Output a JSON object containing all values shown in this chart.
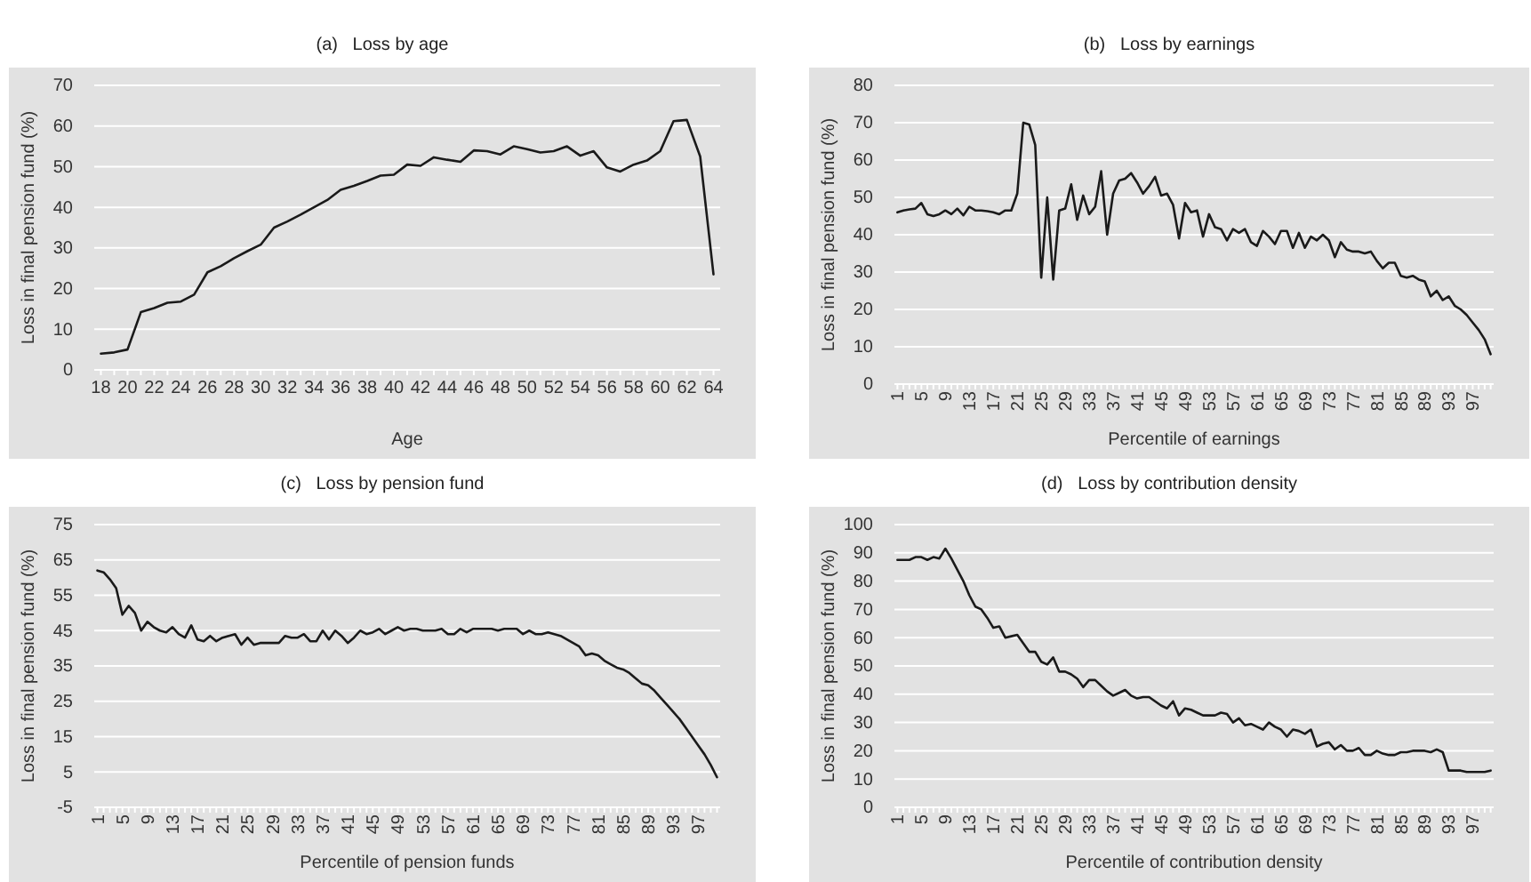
{
  "chart_data": [
    {
      "type": "line",
      "title": "(a)   Loss by age",
      "xlabel": "Age",
      "ylabel": "Loss in final pension fund (%)",
      "grid": "y",
      "ylim": [
        0,
        70
      ],
      "yticks": [
        0,
        10,
        20,
        30,
        40,
        50,
        60,
        70
      ],
      "categories": [
        "18",
        null,
        "20",
        null,
        "22",
        null,
        "24",
        null,
        "26",
        null,
        "28",
        null,
        "30",
        null,
        "32",
        null,
        "34",
        null,
        "36",
        null,
        "38",
        null,
        "40",
        null,
        "42",
        null,
        "44",
        null,
        "46",
        null,
        "48",
        null,
        "50",
        null,
        "52",
        null,
        "54",
        null,
        "56",
        null,
        "58",
        null,
        "60",
        null,
        "62",
        null,
        "64"
      ],
      "series": [
        {
          "color": "#1a1a1a",
          "values": [
            4,
            4.3,
            5,
            14.2,
            15.2,
            16.5,
            16.8,
            18.5,
            24,
            25.5,
            27.5,
            29.2,
            30.8,
            35,
            36.5,
            38.2,
            40,
            41.8,
            44.3,
            45.3,
            46.5,
            47.8,
            48,
            50.5,
            50.2,
            52.3,
            51.7,
            51.2,
            54,
            53.8,
            53,
            55,
            54.3,
            53.5,
            53.8,
            55,
            52.7,
            53.8,
            49.8,
            48.8,
            50.5,
            51.5,
            53.8,
            61.2,
            61.5,
            52.5,
            23.5
          ]
        }
      ]
    },
    {
      "type": "line",
      "title": "(b)   Loss by earnings",
      "xlabel": "Percentile of earnings",
      "ylabel": "Loss in final pension fund (%)",
      "grid": "y",
      "ylim": [
        0,
        80
      ],
      "yticks": [
        0,
        10,
        20,
        30,
        40,
        50,
        60,
        70,
        80
      ],
      "categories": [
        "1",
        null,
        null,
        null,
        "5",
        null,
        null,
        null,
        "9",
        null,
        null,
        null,
        "13",
        null,
        null,
        null,
        "17",
        null,
        null,
        null,
        "21",
        null,
        null,
        null,
        "25",
        null,
        null,
        null,
        "29",
        null,
        null,
        null,
        "33",
        null,
        null,
        null,
        "37",
        null,
        null,
        null,
        "41",
        null,
        null,
        null,
        "45",
        null,
        null,
        null,
        "49",
        null,
        null,
        null,
        "53",
        null,
        null,
        null,
        "57",
        null,
        null,
        null,
        "61",
        null,
        null,
        null,
        "65",
        null,
        null,
        null,
        "69",
        null,
        null,
        null,
        "73",
        null,
        null,
        null,
        "77",
        null,
        null,
        null,
        "81",
        null,
        null,
        null,
        "85",
        null,
        null,
        null,
        "89",
        null,
        null,
        null,
        "93",
        null,
        null,
        null,
        "97",
        null,
        null,
        null
      ],
      "series": [
        {
          "color": "#1a1a1a",
          "values": [
            46,
            46.5,
            46.8,
            47,
            48.5,
            45.5,
            45,
            45.5,
            46.5,
            45.5,
            47,
            45.2,
            47.5,
            46.5,
            46.5,
            46.3,
            46,
            45.5,
            46.5,
            46.5,
            51,
            70,
            69.5,
            64,
            28.5,
            50,
            28,
            46.5,
            47,
            53.5,
            44,
            50.5,
            45.5,
            47.5,
            57,
            40,
            51,
            54.5,
            55,
            56.5,
            54,
            51,
            53,
            55.5,
            50.5,
            51,
            48,
            39,
            48.5,
            46,
            46.5,
            39.5,
            45.5,
            42,
            41.5,
            38.5,
            41.5,
            40.5,
            41.5,
            38,
            37,
            41,
            39.5,
            37.5,
            41,
            41,
            36.5,
            40.5,
            36.5,
            39.5,
            38.5,
            40,
            38.5,
            34,
            38,
            36,
            35.5,
            35.5,
            35,
            35.5,
            33,
            31,
            32.5,
            32.5,
            29,
            28.5,
            29,
            28,
            27.5,
            23.5,
            25,
            22.5,
            23.5,
            21,
            20,
            18.5,
            16.5,
            14.5,
            12,
            8
          ]
        }
      ]
    },
    {
      "type": "line",
      "title": "(c)   Loss by pension fund",
      "xlabel": "Percentile of pension funds",
      "ylabel": "Loss in final pension fund (%)",
      "grid": "y",
      "ylim": [
        -5,
        75
      ],
      "yticks": [
        -5,
        5,
        15,
        25,
        35,
        45,
        55,
        65,
        75
      ],
      "categories": [
        "1",
        null,
        null,
        null,
        "5",
        null,
        null,
        null,
        "9",
        null,
        null,
        null,
        "13",
        null,
        null,
        null,
        "17",
        null,
        null,
        null,
        "21",
        null,
        null,
        null,
        "25",
        null,
        null,
        null,
        "29",
        null,
        null,
        null,
        "33",
        null,
        null,
        null,
        "37",
        null,
        null,
        null,
        "41",
        null,
        null,
        null,
        "45",
        null,
        null,
        null,
        "49",
        null,
        null,
        null,
        "53",
        null,
        null,
        null,
        "57",
        null,
        null,
        null,
        "61",
        null,
        null,
        null,
        "65",
        null,
        null,
        null,
        "69",
        null,
        null,
        null,
        "73",
        null,
        null,
        null,
        "77",
        null,
        null,
        null,
        "81",
        null,
        null,
        null,
        "85",
        null,
        null,
        null,
        "89",
        null,
        null,
        null,
        "93",
        null,
        null,
        null,
        "97",
        null,
        null,
        null
      ],
      "series": [
        {
          "color": "#1a1a1a",
          "values": [
            62,
            61.5,
            59.5,
            57,
            49.5,
            52,
            50,
            45,
            47.5,
            46,
            45,
            44.5,
            46,
            44,
            43,
            46.5,
            42.5,
            42,
            43.5,
            42,
            43,
            43.5,
            44,
            41,
            43,
            41,
            41.5,
            41.5,
            41.5,
            41.5,
            43.5,
            43,
            43,
            44,
            42,
            42,
            45,
            42.5,
            45,
            43.5,
            41.5,
            43,
            45,
            44,
            44.5,
            45.5,
            44,
            45,
            46,
            45,
            45.5,
            45.5,
            45,
            45,
            45,
            45.5,
            44,
            44,
            45.5,
            44.5,
            45.5,
            45.5,
            45.5,
            45.5,
            45,
            45.5,
            45.5,
            45.5,
            44,
            45,
            44,
            44,
            44.5,
            44,
            43.5,
            42.5,
            41.5,
            40.5,
            38,
            38.5,
            38,
            36.5,
            35.5,
            34.5,
            34,
            33,
            31.5,
            30,
            29.5,
            28,
            26,
            24,
            22,
            20,
            17.5,
            15,
            12.5,
            10,
            7,
            3.5
          ]
        }
      ]
    },
    {
      "type": "line",
      "title": "(d)   Loss by contribution density",
      "xlabel": "Percentile of contribution density",
      "ylabel": "Loss in final pension fund (%)",
      "grid": "y",
      "ylim": [
        0,
        100
      ],
      "yticks": [
        0,
        10,
        20,
        30,
        40,
        50,
        60,
        70,
        80,
        90,
        100
      ],
      "categories": [
        "1",
        null,
        null,
        null,
        "5",
        null,
        null,
        null,
        "9",
        null,
        null,
        null,
        "13",
        null,
        null,
        null,
        "17",
        null,
        null,
        null,
        "21",
        null,
        null,
        null,
        "25",
        null,
        null,
        null,
        "29",
        null,
        null,
        null,
        "33",
        null,
        null,
        null,
        "37",
        null,
        null,
        null,
        "41",
        null,
        null,
        null,
        "45",
        null,
        null,
        null,
        "49",
        null,
        null,
        null,
        "53",
        null,
        null,
        null,
        "57",
        null,
        null,
        null,
        "61",
        null,
        null,
        null,
        "65",
        null,
        null,
        null,
        "69",
        null,
        null,
        null,
        "73",
        null,
        null,
        null,
        "77",
        null,
        null,
        null,
        "81",
        null,
        null,
        null,
        "85",
        null,
        null,
        null,
        "89",
        null,
        null,
        null,
        "93",
        null,
        null,
        null,
        "97",
        null,
        null,
        null
      ],
      "series": [
        {
          "color": "#1a1a1a",
          "values": [
            87.5,
            87.5,
            87.5,
            88.5,
            88.5,
            87.5,
            88.5,
            88,
            91.5,
            88,
            84,
            80,
            75,
            71,
            70,
            67,
            63.5,
            64,
            60,
            60.5,
            61,
            58,
            55,
            55,
            51.5,
            50.5,
            53,
            48,
            48,
            47,
            45.5,
            42.5,
            45,
            45,
            43,
            41,
            39.5,
            40.5,
            41.5,
            39.5,
            38.5,
            39,
            39,
            37.5,
            36,
            35,
            37.5,
            32.5,
            35,
            34.5,
            33.5,
            32.5,
            32.5,
            32.5,
            33.5,
            33,
            30,
            31.5,
            29,
            29.5,
            28.5,
            27.5,
            30,
            28.5,
            27.5,
            25,
            27.5,
            27,
            26,
            27.5,
            21.5,
            22.5,
            23,
            20.5,
            22,
            20,
            20,
            21,
            18.5,
            18.5,
            20,
            19,
            18.5,
            18.5,
            19.5,
            19.5,
            20,
            20,
            20,
            19.5,
            20.5,
            19.5,
            13,
            13,
            13,
            12.5,
            12.5,
            12.5,
            12.5,
            13
          ]
        }
      ]
    }
  ]
}
